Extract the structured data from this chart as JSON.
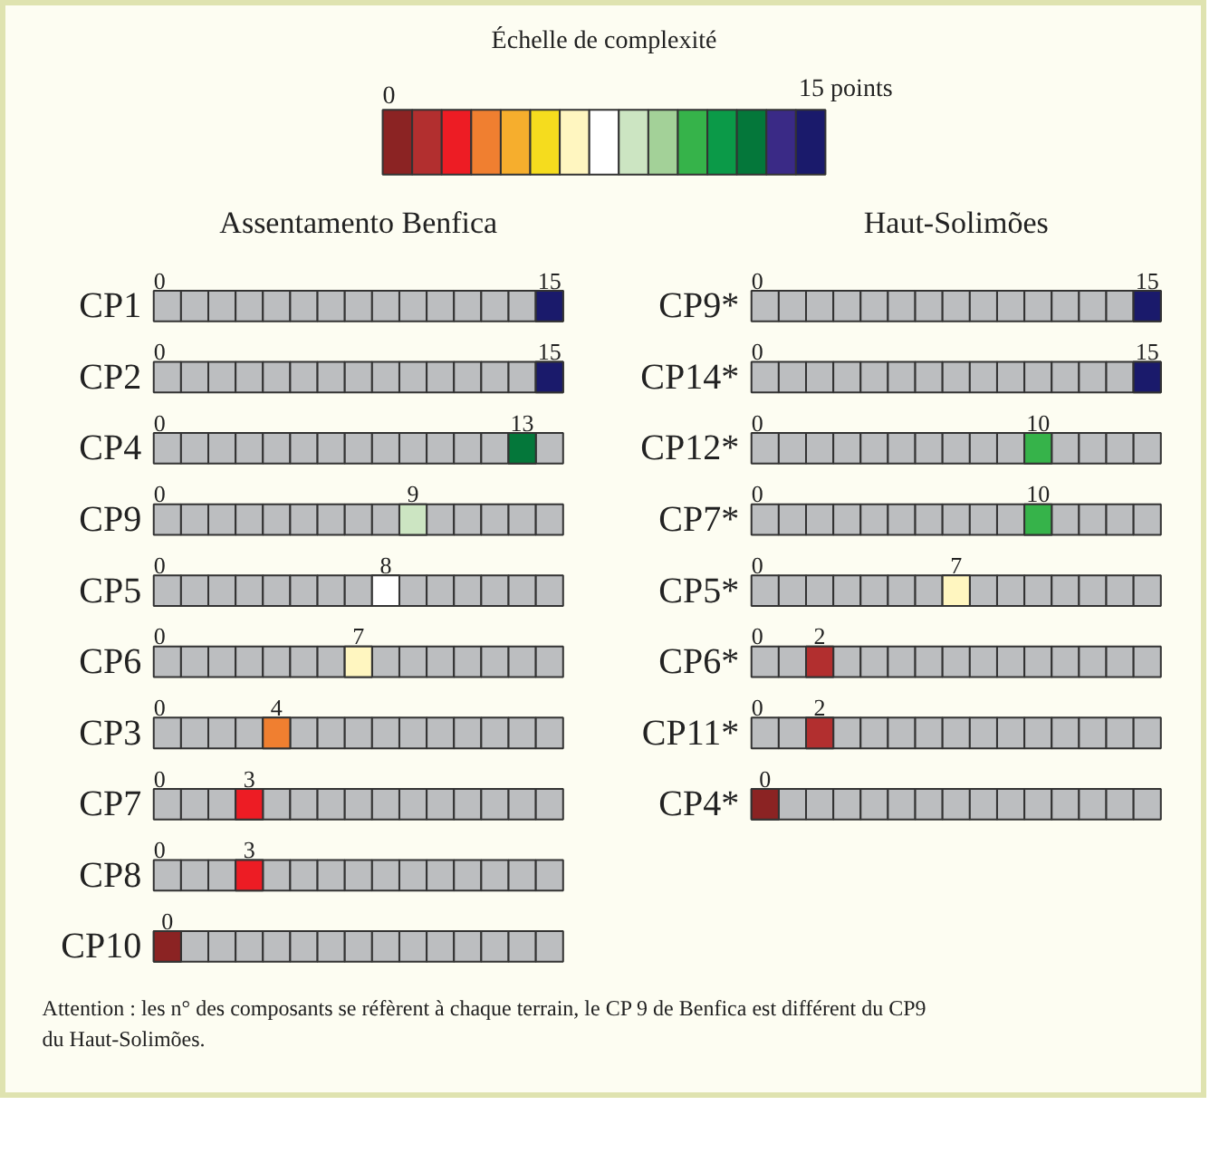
{
  "chart_data": [
    {
      "type": "other",
      "clabel": "Échelle de complexité",
      "annotations": [
        "0",
        "15 points"
      ],
      "colors": [
        "#8b2323",
        "#b22f2f",
        "#ed1c24",
        "#f07f30",
        "#f6ae2d",
        "#f5dc1e",
        "#fff6c0",
        "#ffffff",
        "#cce5c2",
        "#a3d198",
        "#36b34a",
        "#0b9a48",
        "#04773a",
        "#3a2a86",
        "#1a1a6b"
      ]
    },
    {
      "type": "other",
      "title": "Assentamento Benfica",
      "categories": [
        "CP1",
        "CP2",
        "CP4",
        "CP9",
        "CP5",
        "CP6",
        "CP3",
        "CP7",
        "CP8",
        "CP10"
      ],
      "values": [
        15,
        15,
        13,
        9,
        8,
        7,
        4,
        3,
        3,
        0
      ],
      "colors": [
        "#1a1a6b",
        "#1a1a6b",
        "#04773a",
        "#cce5c2",
        "#ffffff",
        "#fff6c0",
        "#f07f30",
        "#ed1c24",
        "#ed1c24",
        "#8b2323"
      ],
      "data_labels": true,
      "annotations": [
        "0",
        "0",
        "0",
        "0",
        "0",
        "0",
        "0",
        "0",
        "0"
      ]
    },
    {
      "type": "other",
      "title": "Haut-Solimões",
      "categories": [
        "CP9*",
        "CP14*",
        "CP12*",
        "CP7*",
        "CP5*",
        "CP6*",
        "CP11*",
        "CP4*"
      ],
      "values": [
        15,
        15,
        10,
        10,
        7,
        2,
        2,
        0
      ],
      "colors": [
        "#1a1a6b",
        "#1a1a6b",
        "#36b34a",
        "#36b34a",
        "#fff6c0",
        "#b22f2f",
        "#b22f2f",
        "#8b2323"
      ],
      "data_labels": true,
      "annotations": [
        "0",
        "0",
        "0",
        "0",
        "0",
        "0",
        "0",
        "Attention :   les n° des composants se réfèrent à chaque terrain,  le CP 9 de Benfica est différent du CP9 du Haut-Solimões."
      ]
    }
  ]
}
